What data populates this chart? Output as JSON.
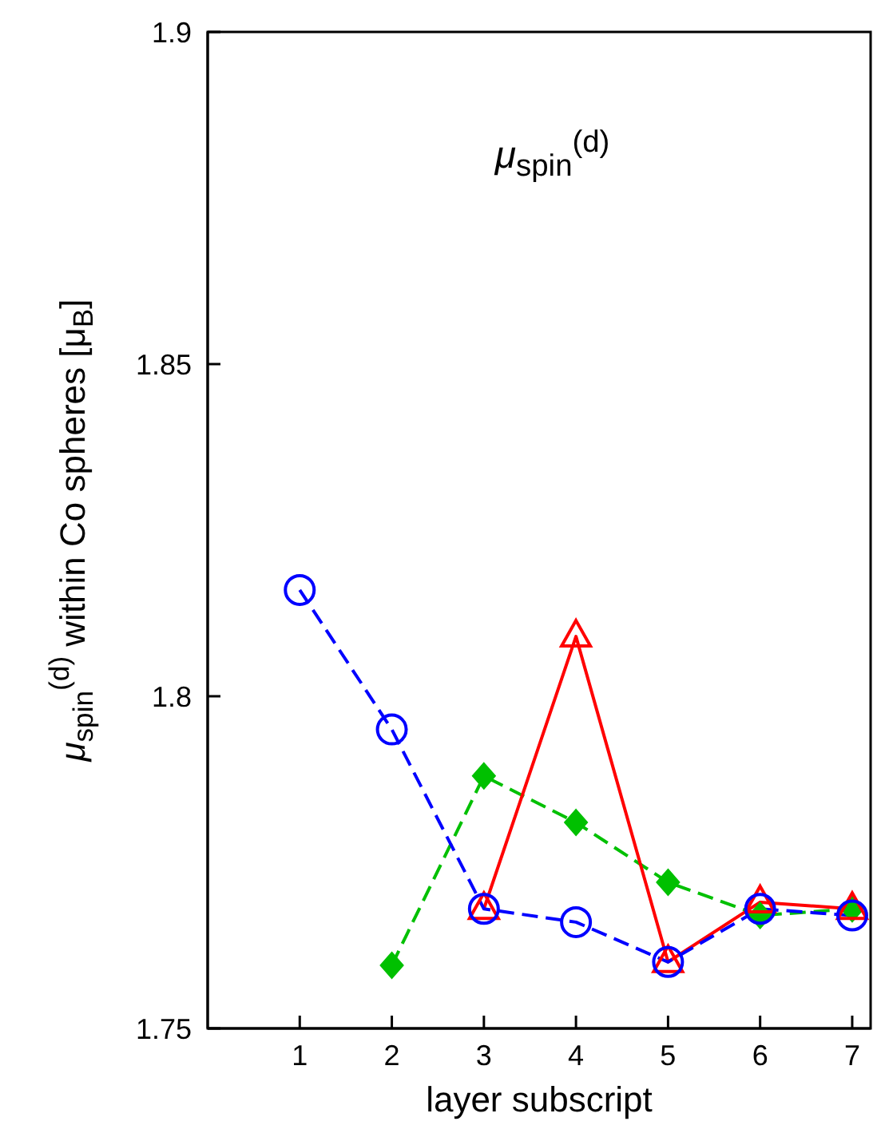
{
  "chart_data": {
    "type": "line",
    "title": "μ$_{spin}$$^{(d)}$",
    "xlabel": "layer subscript",
    "ylabel": "μ$_{spin}$$^{(d)}$ within Co spheres   [μ$_{B}$]",
    "x": [
      1,
      2,
      3,
      4,
      5,
      6,
      7
    ],
    "series": [
      {
        "color": "#00c000",
        "values": [
          null,
          1.7595,
          1.788,
          1.781,
          1.772,
          1.767,
          1.768
        ],
        "marker": "diamond",
        "line_style": "dashed"
      },
      {
        "color": "#ff0000",
        "values": [
          null,
          null,
          1.768,
          1.809,
          1.76,
          1.769,
          1.768
        ],
        "marker": "triangle",
        "line_style": "solid"
      },
      {
        "color": "#0000ff",
        "values": [
          1.816,
          1.795,
          1.768,
          1.766,
          1.76,
          1.768,
          1.767
        ],
        "marker": "circle",
        "line_style": "dashed"
      }
    ],
    "xlim": [
      0,
      7.2
    ],
    "xticks": [
      1,
      2,
      3,
      4,
      5,
      6,
      7
    ],
    "ylim": [
      1.75,
      1.9
    ],
    "yticks": [
      1.75,
      1.8,
      1.85,
      1.9
    ],
    "grid": false,
    "legend": false
  }
}
